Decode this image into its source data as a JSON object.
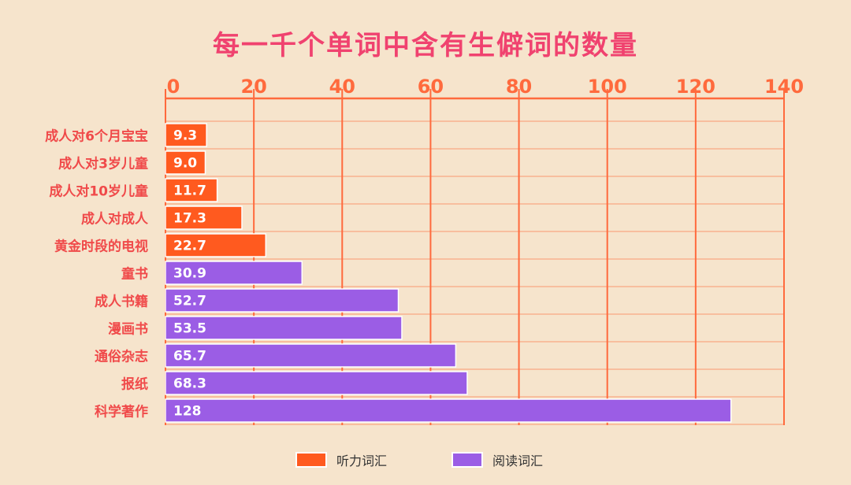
{
  "chart_data": {
    "type": "bar",
    "orientation": "horizontal",
    "title": "每一千个单词中含有生僻词的数量",
    "categories": [
      "成人对6个月宝宝",
      "成人对3岁儿童",
      "成人对10岁儿童",
      "成人对成人",
      "黄金时段的电视",
      "童书",
      "成人书籍",
      "漫画书",
      "通俗杂志",
      "报纸",
      "科学著作"
    ],
    "values": [
      9.3,
      9.0,
      11.7,
      17.3,
      22.7,
      30.9,
      52.7,
      53.5,
      65.7,
      68.3,
      128
    ],
    "value_labels": [
      "9.3",
      "9.0",
      "11.7",
      "17.3",
      "22.7",
      "30.9",
      "52.7",
      "53.5",
      "65.7",
      "68.3",
      "128"
    ],
    "category_series": [
      0,
      0,
      0,
      0,
      0,
      1,
      1,
      1,
      1,
      1,
      1
    ],
    "series": [
      {
        "name": "听力词汇",
        "color": "#ff5a1f"
      },
      {
        "name": "阅读词汇",
        "color": "#9b5de5"
      }
    ],
    "xlim": [
      0,
      140
    ],
    "x_ticks": [
      "0",
      "20",
      "40",
      "60",
      "80",
      "100",
      "120",
      "140"
    ],
    "x_axis_position": "top",
    "grid": true,
    "legend_position": "bottom",
    "colors": {
      "axis": "#ff6a3d",
      "grid_light": "#f8b18f",
      "title": "#f0426f",
      "label": "#f04a4a",
      "value_text": "#ffffff"
    }
  }
}
